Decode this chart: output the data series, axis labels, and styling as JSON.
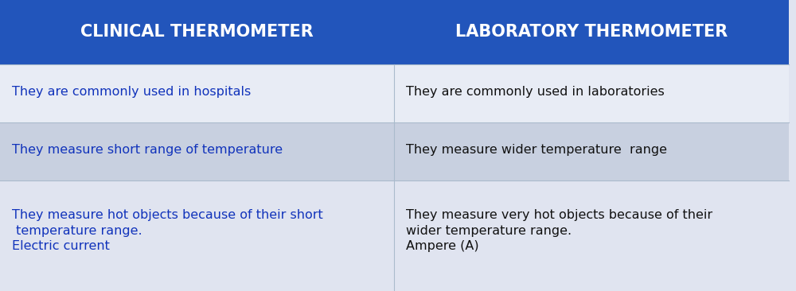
{
  "header_left": "CLINICAL THERMOMETER",
  "header_right": "LABORATORY THERMOMETER",
  "header_bg": "#2255bb",
  "header_text_color": "#ffffff",
  "divider_color": "#aabbcc",
  "left_text_color": "#1133bb",
  "right_text_color": "#111111",
  "rows": [
    {
      "left": "They are commonly used in hospitals",
      "right": "They are commonly used in laboratories",
      "left_bg": "#e8ecf5",
      "right_bg": "#e8ecf5"
    },
    {
      "left": "They measure short range of temperature",
      "right": "They measure wider temperature  range",
      "left_bg": "#c8d0e0",
      "right_bg": "#c8d0e0"
    },
    {
      "left": "They measure hot objects because of their short\n temperature range.\nElectric current",
      "right": "They measure very hot objects because of their\nwider temperature range.\nAmpere (A)",
      "left_bg": "#e0e4f0",
      "right_bg": "#e0e4f0"
    }
  ],
  "figsize": [
    10.0,
    3.66
  ],
  "dpi": 100,
  "header_fontsize": 15,
  "body_fontsize": 11.5
}
